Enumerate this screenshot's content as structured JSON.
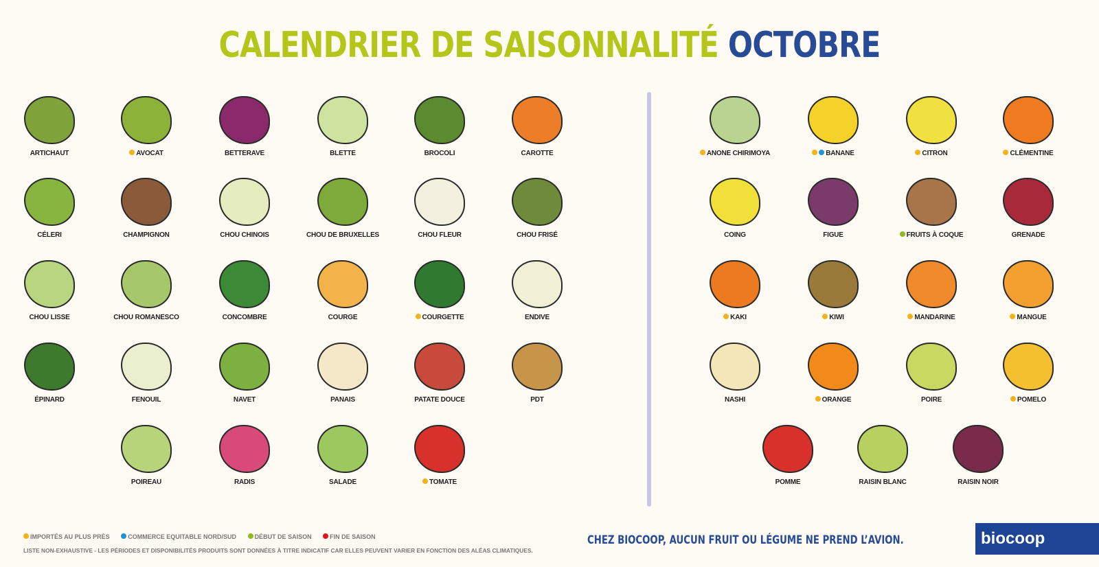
{
  "title": {
    "part1": "CALENDRIER DE SAISONNALITÉ",
    "part2": "OCTOBRE"
  },
  "marker_colors": {
    "imported": "#f5b21b",
    "fair_trade": "#1f93d6",
    "season_start": "#8dbb21",
    "season_end": "#e2141b"
  },
  "vegetables": [
    {
      "label": "ARTICHAUT",
      "markers": [],
      "icon_color": "#7fa33a"
    },
    {
      "label": "AVOCAT",
      "markers": [
        "imported"
      ],
      "icon_color": "#8cb23a"
    },
    {
      "label": "BETTERAVE",
      "markers": [],
      "icon_color": "#8a2a6a"
    },
    {
      "label": "BLETTE",
      "markers": [],
      "icon_color": "#cfe3a0"
    },
    {
      "label": "BROCOLI",
      "markers": [],
      "icon_color": "#5c8a2e"
    },
    {
      "label": "CAROTTE",
      "markers": [],
      "icon_color": "#ee7d2a"
    },
    {
      "label": "CÉLERI",
      "markers": [],
      "icon_color": "#88b440"
    },
    {
      "label": "CHAMPIGNON",
      "markers": [],
      "icon_color": "#8a5a3a"
    },
    {
      "label": "CHOU CHINOIS",
      "markers": [],
      "icon_color": "#e5ecc0"
    },
    {
      "label": "CHOU DE BRUXELLES",
      "markers": [],
      "icon_color": "#7daa3a"
    },
    {
      "label": "CHOU FLEUR",
      "markers": [],
      "icon_color": "#f3f0e0"
    },
    {
      "label": "CHOU FRISÉ",
      "markers": [],
      "icon_color": "#6d8b3a"
    },
    {
      "label": "CHOU LISSE",
      "markers": [],
      "icon_color": "#b8d680"
    },
    {
      "label": "CHOU ROMANESCO",
      "markers": [],
      "icon_color": "#a6c86a"
    },
    {
      "label": "CONCOMBRE",
      "markers": [],
      "icon_color": "#3c8a35"
    },
    {
      "label": "COURGE",
      "markers": [],
      "icon_color": "#f3b24a"
    },
    {
      "label": "COURGETTE",
      "markers": [
        "imported"
      ],
      "icon_color": "#2f7a30"
    },
    {
      "label": "ENDIVE",
      "markers": [],
      "icon_color": "#f1f0d6"
    },
    {
      "label": "ÉPINARD",
      "markers": [],
      "icon_color": "#3e7a2e"
    },
    {
      "label": "FENOUIL",
      "markers": [],
      "icon_color": "#e9efcf"
    },
    {
      "label": "NAVET",
      "markers": [],
      "icon_color": "#7cb040"
    },
    {
      "label": "PANAIS",
      "markers": [],
      "icon_color": "#f4e8c8"
    },
    {
      "label": "PATATE DOUCE",
      "markers": [],
      "icon_color": "#c84a3a"
    },
    {
      "label": "PDT",
      "markers": [],
      "icon_color": "#c7954a"
    },
    {
      "label": "POIREAU",
      "markers": [],
      "icon_color": "#b8d47a"
    },
    {
      "label": "RADIS",
      "markers": [],
      "icon_color": "#d84a7a"
    },
    {
      "label": "SALADE",
      "markers": [],
      "icon_color": "#9cc860"
    },
    {
      "label": "TOMATE",
      "markers": [
        "imported"
      ],
      "icon_color": "#d8302a"
    }
  ],
  "fruits": [
    {
      "label": "ANONE CHIRIMOYA",
      "markers": [
        "imported"
      ],
      "icon_color": "#b8d490"
    },
    {
      "label": "BANANE",
      "markers": [
        "imported",
        "fair_trade"
      ],
      "icon_color": "#f5d22a"
    },
    {
      "label": "CITRON",
      "markers": [
        "imported"
      ],
      "icon_color": "#f0e040"
    },
    {
      "label": "CLÉMENTINE",
      "markers": [
        "imported"
      ],
      "icon_color": "#f07a20"
    },
    {
      "label": "COING",
      "markers": [],
      "icon_color": "#f2e03a"
    },
    {
      "label": "FIGUE",
      "markers": [],
      "icon_color": "#7a3a6a"
    },
    {
      "label": "FRUITS À COQUE",
      "markers": [
        "season_start"
      ],
      "icon_color": "#a8744a"
    },
    {
      "label": "GRENADE",
      "markers": [],
      "icon_color": "#a82a3a"
    },
    {
      "label": "KAKI",
      "markers": [
        "imported"
      ],
      "icon_color": "#ec7a20"
    },
    {
      "label": "KIWI",
      "markers": [
        "imported"
      ],
      "icon_color": "#9a7a3a"
    },
    {
      "label": "MANDARINE",
      "markers": [
        "imported"
      ],
      "icon_color": "#f08a2a"
    },
    {
      "label": "MANGUE",
      "markers": [
        "imported"
      ],
      "icon_color": "#f4a030"
    },
    {
      "label": "NASHI",
      "markers": [],
      "icon_color": "#f3e6b8"
    },
    {
      "label": "ORANGE",
      "markers": [
        "imported"
      ],
      "icon_color": "#f28a1a"
    },
    {
      "label": "POIRE",
      "markers": [],
      "icon_color": "#c8d860"
    },
    {
      "label": "POMELO",
      "markers": [
        "imported"
      ],
      "icon_color": "#f5c030"
    },
    {
      "label": "POMME",
      "markers": [],
      "icon_color": "#d8302a"
    },
    {
      "label": "RAISIN BLANC",
      "markers": [],
      "icon_color": "#b8d060"
    },
    {
      "label": "RAISIN NOIR",
      "markers": [],
      "icon_color": "#7a2a4a"
    }
  ],
  "legend": {
    "imported": "IMPORTÉS AU PLUS PRÈS",
    "fair_trade": "COMMERCE EQUITABLE NORD/SUD",
    "season_start": "DÉBUT DE SAISON",
    "season_end": "FIN DE SAISON",
    "note": "LISTE NON-EXHAUSTIVE - LES PÉRIODES ET DISPONIBILITÉS PRODUITS SONT DONNÉES À TITRE INDICATIF CAR ELLES PEUVENT VARIER EN FONCTION DES ALÉAS CLIMATIQUES."
  },
  "slogan": "CHEZ BIOCOOP, AUCUN FRUIT OU LÉGUME NE PREND L’AVION.",
  "logo": "biocoop"
}
